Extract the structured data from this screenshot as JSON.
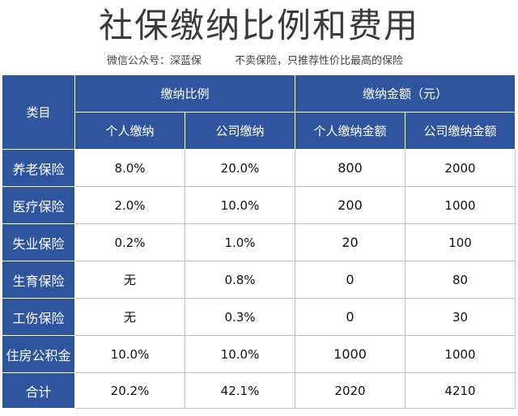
{
  "title": "社保缴纳比例和费用",
  "subtitle": {
    "source": "微信公众号：深蓝保",
    "slogan": "不卖保险，只推荐性价比最高的保险"
  },
  "table": {
    "header_category": "类目",
    "group_ratio": "缴纳比例",
    "group_amount": "缴纳金额（元）",
    "col_personal_ratio": "个人缴纳",
    "col_company_ratio": "公司缴纳",
    "col_personal_amount": "个人缴纳金额",
    "col_company_amount": "公司缴纳金额",
    "rows": [
      {
        "name": "养老保险",
        "personal_ratio": "8.0%",
        "company_ratio": "20.0%",
        "personal_amount": "800",
        "company_amount": "2000"
      },
      {
        "name": "医疗保险",
        "personal_ratio": "2.0%",
        "company_ratio": "10.0%",
        "personal_amount": "200",
        "company_amount": "1000"
      },
      {
        "name": "失业保险",
        "personal_ratio": "0.2%",
        "company_ratio": "1.0%",
        "personal_amount": "20",
        "company_amount": "100"
      },
      {
        "name": "生育保险",
        "personal_ratio": "无",
        "company_ratio": "0.8%",
        "personal_amount": "0",
        "company_amount": "80"
      },
      {
        "name": "工伤保险",
        "personal_ratio": "无",
        "company_ratio": "0.3%",
        "personal_amount": "0",
        "company_amount": "30"
      },
      {
        "name": "住房公积金",
        "personal_ratio": "10.0%",
        "company_ratio": "10.0%",
        "personal_amount": "1000",
        "company_amount": "1000"
      }
    ],
    "total": {
      "name": "合计",
      "personal_ratio": "20.2%",
      "company_ratio": "42.1%",
      "personal_amount": "2020",
      "company_amount": "4210"
    }
  }
}
